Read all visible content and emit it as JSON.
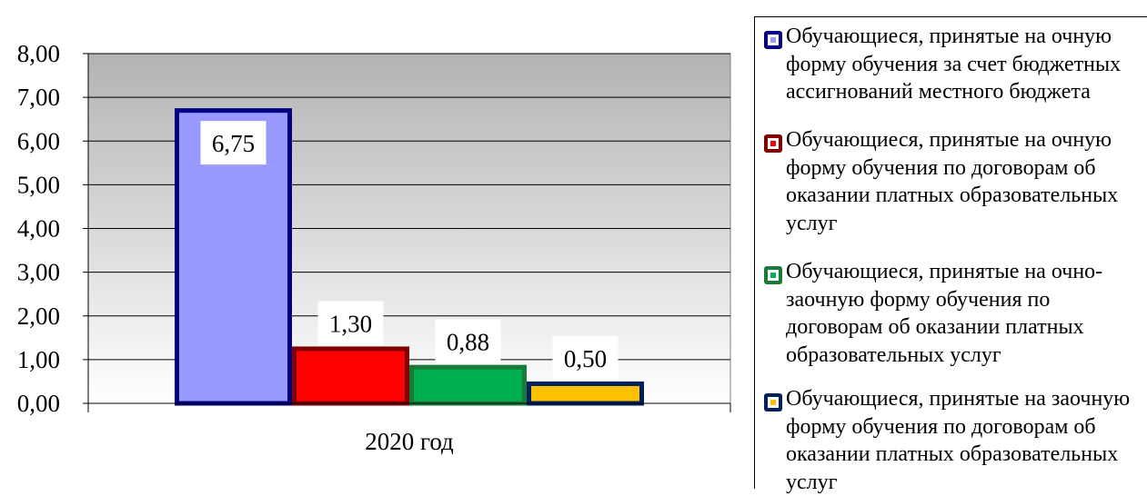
{
  "chart_data": {
    "type": "bar",
    "categories": [
      "2020 год"
    ],
    "series": [
      {
        "name": "Обучающиеся, принятые на очную форму обучения за счет бюджетных ассигнований местного бюджета",
        "values": [
          6.75
        ],
        "label": "6,75",
        "color": "#9999ff",
        "edge": "#000080"
      },
      {
        "name": "Обучающиеся, принятые на очную форму обучения по договорам об оказании платных образовательных услуг",
        "values": [
          1.3
        ],
        "label": "1,30",
        "color": "#ff0000",
        "edge": "#800000"
      },
      {
        "name": "Обучающиеся, принятые на очно-заочную форму обучения по договорам об оказании платных образовательных услуг",
        "values": [
          0.88
        ],
        "label": "0,88",
        "color": "#00b050",
        "edge": "#1a7a3a"
      },
      {
        "name": "Обучающиеся, принятые на заочную форму обучения по договорам об оказании платных образовательных услуг",
        "values": [
          0.5
        ],
        "label": "0,50",
        "color": "#ffc000",
        "edge": "#002060"
      }
    ],
    "ylim": [
      0,
      8
    ],
    "yticks": [
      "0,00",
      "1,00",
      "2,00",
      "3,00",
      "4,00",
      "5,00",
      "6,00",
      "7,00",
      "8,00"
    ],
    "grid": true,
    "legend_position": "right"
  }
}
